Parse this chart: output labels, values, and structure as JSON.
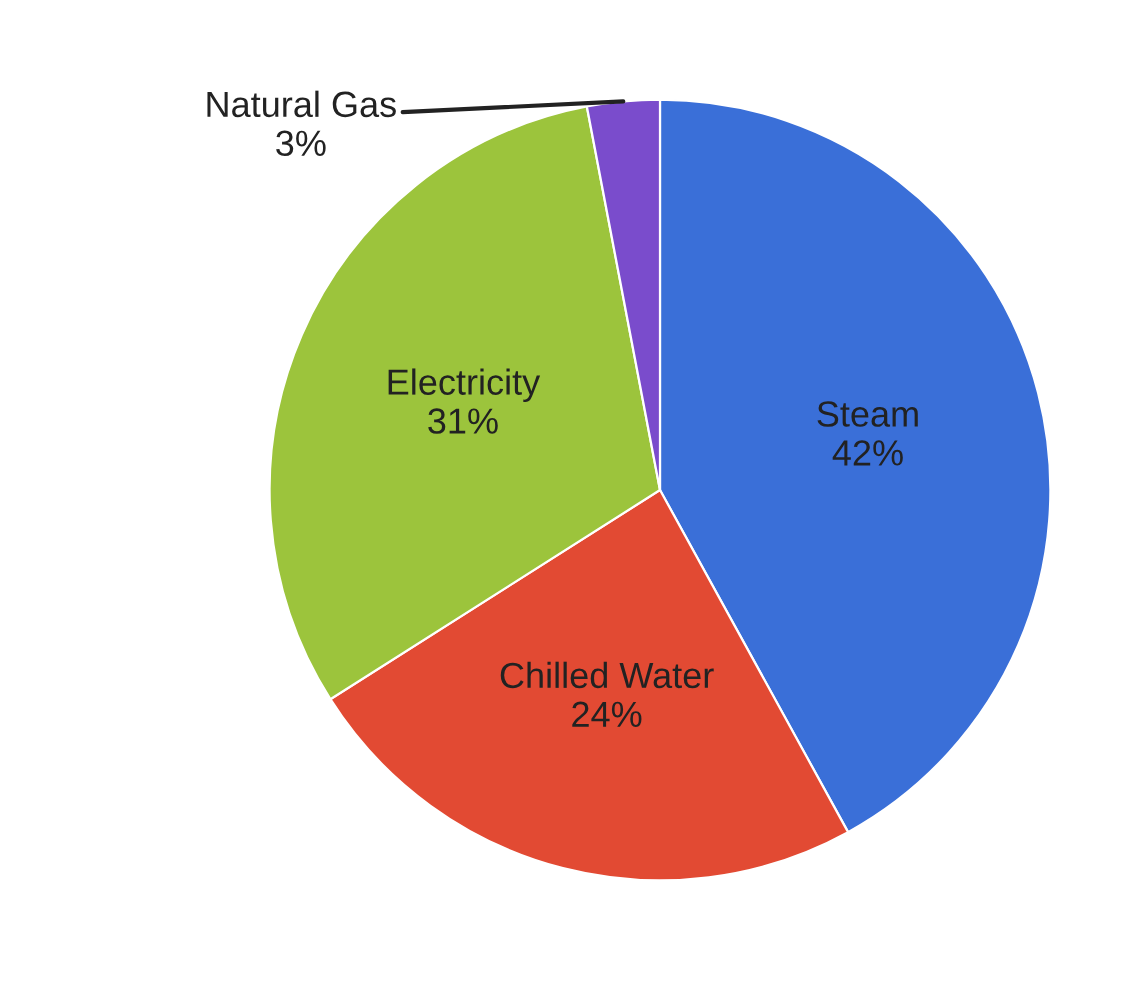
{
  "chart_data": {
    "type": "pie",
    "categories": [
      "Steam",
      "Chilled Water",
      "Electricity",
      "Natural Gas"
    ],
    "values": [
      42,
      24,
      31,
      3
    ],
    "value_labels": [
      "42%",
      "24%",
      "31%",
      "3%"
    ],
    "colors": [
      "#3a6fd8",
      "#e24a33",
      "#9cc43c",
      "#7a4ccc"
    ]
  }
}
